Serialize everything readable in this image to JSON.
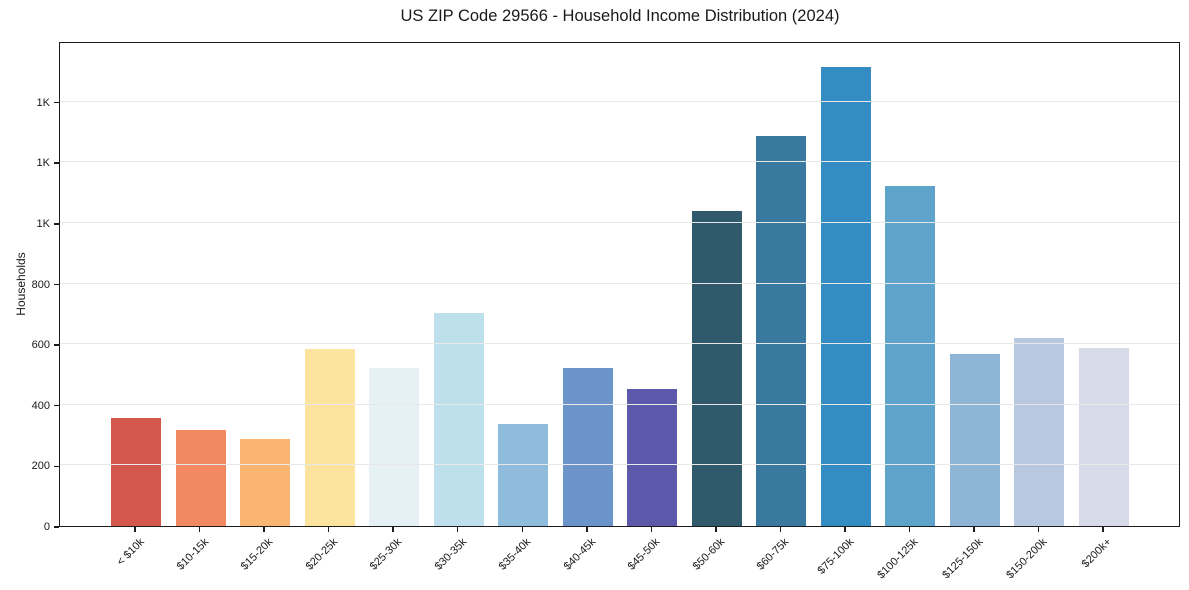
{
  "title": "US ZIP Code 29566 - Household Income Distribution (2024)",
  "chart_data": {
    "type": "bar",
    "title": "US ZIP Code 29566 - Household Income Distribution (2024)",
    "xlabel": "",
    "ylabel": "Households",
    "categories": [
      "< $10k",
      "$10-15k",
      "$15-20k",
      "$20-25k",
      "$25-30k",
      "$30-35k",
      "$35-40k",
      "$40-45k",
      "$45-50k",
      "$50-60k",
      "$60-75k",
      "$75-100k",
      "$100-125k",
      "$125-150k",
      "$150-200k",
      "$200k+"
    ],
    "values": [
      355,
      318,
      287,
      585,
      520,
      703,
      338,
      523,
      453,
      1039,
      1288,
      1515,
      1122,
      566,
      622,
      589
    ],
    "bar_colors": [
      "#d4574d",
      "#f28963",
      "#fab570",
      "#fde49e",
      "#e6f1f5",
      "#bee0ec",
      "#8fbcdd",
      "#6b94ca",
      "#5c59ab",
      "#30596c",
      "#39789f",
      "#338dc3",
      "#5ea4ca",
      "#8eb4d6",
      "#b7c8e0",
      "#d7dae8"
    ],
    "ylim": [
      0,
      1600
    ],
    "y_tick_values": [
      0,
      200,
      400,
      600,
      800,
      1000,
      1200,
      1400
    ],
    "y_tick_labels": [
      "0",
      "200",
      "400",
      "600",
      "800",
      "1K",
      "1K",
      "1K"
    ],
    "grid": "horizontal",
    "legend": "none",
    "colors": {
      "grid": "#e8e8e8",
      "spine": "#1c1c1c",
      "text": "#1a1a1a",
      "background": "#ffffff"
    }
  }
}
